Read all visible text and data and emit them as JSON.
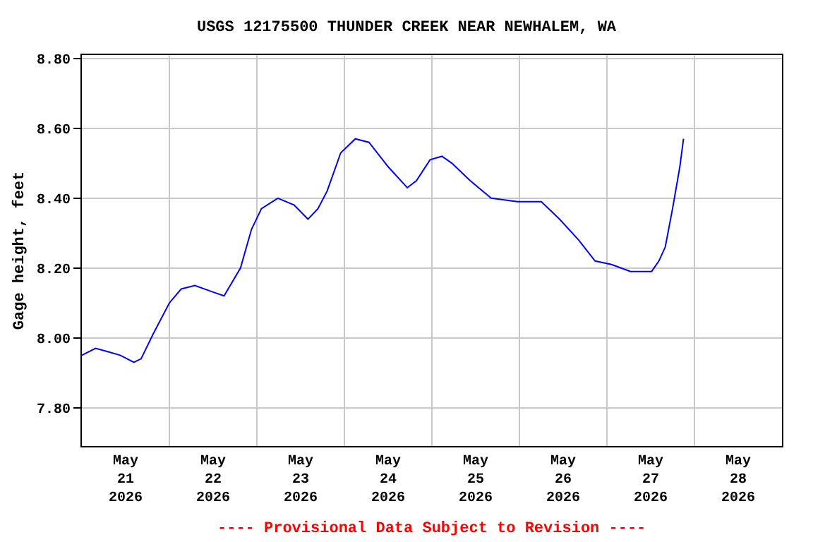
{
  "chart_data": {
    "type": "line",
    "title": "USGS 12175500 THUNDER CREEK NEAR NEWHALEM, WA",
    "ylabel": "Gage height, feet",
    "annotations": [
      "---- Provisional Data Subject to Revision ----"
    ],
    "x": [
      "2026-05-21T00:00",
      "2026-05-21T03:45",
      "2026-05-21T07:15",
      "2026-05-21T10:30",
      "2026-05-21T14:15",
      "2026-05-21T16:15",
      "2026-05-21T19:30",
      "2026-05-22T00:00",
      "2026-05-22T03:15",
      "2026-05-22T07:00",
      "2026-05-22T12:15",
      "2026-05-22T15:00",
      "2026-05-22T19:30",
      "2026-05-22T22:30",
      "2026-05-23T01:15",
      "2026-05-23T05:45",
      "2026-05-23T10:15",
      "2026-05-23T14:00",
      "2026-05-23T16:45",
      "2026-05-23T19:15",
      "2026-05-23T23:00",
      "2026-05-24T03:00",
      "2026-05-24T06:45",
      "2026-05-24T12:00",
      "2026-05-24T17:15",
      "2026-05-24T19:45",
      "2026-05-24T23:30",
      "2026-05-25T02:45",
      "2026-05-25T05:30",
      "2026-05-25T10:30",
      "2026-05-25T16:15",
      "2026-05-25T23:30",
      "2026-05-26T06:00",
      "2026-05-26T11:00",
      "2026-05-26T16:15",
      "2026-05-26T20:45",
      "2026-05-27T01:15",
      "2026-05-27T06:30",
      "2026-05-27T12:15",
      "2026-05-27T14:15",
      "2026-05-27T16:00",
      "2026-05-27T18:00",
      "2026-05-27T20:00",
      "2026-05-27T21:00"
    ],
    "series": [
      {
        "color": "#0000ff",
        "values": [
          7.95,
          7.97,
          7.96,
          7.95,
          7.93,
          7.94,
          8.01,
          8.1,
          8.14,
          8.15,
          8.13,
          8.12,
          8.2,
          8.31,
          8.37,
          8.4,
          8.38,
          8.34,
          8.37,
          8.42,
          8.53,
          8.57,
          8.56,
          8.49,
          8.43,
          8.45,
          8.51,
          8.52,
          8.5,
          8.45,
          8.4,
          8.39,
          8.39,
          8.34,
          8.28,
          8.22,
          8.21,
          8.19,
          8.19,
          8.22,
          8.26,
          8.37,
          8.49,
          8.57
        ]
      }
    ],
    "xlim": [
      "2026-05-21T00:00",
      "2026-05-29T00:00"
    ],
    "xticks": [
      {
        "value": "2026-05-21T12:00",
        "label": "May\n21\n2026"
      },
      {
        "value": "2026-05-22T12:00",
        "label": "May\n22\n2026"
      },
      {
        "value": "2026-05-23T12:00",
        "label": "May\n23\n2026"
      },
      {
        "value": "2026-05-24T12:00",
        "label": "May\n24\n2026"
      },
      {
        "value": "2026-05-25T12:00",
        "label": "May\n25\n2026"
      },
      {
        "value": "2026-05-26T12:00",
        "label": "May\n26\n2026"
      },
      {
        "value": "2026-05-27T12:00",
        "label": "May\n27\n2026"
      },
      {
        "value": "2026-05-28T12:00",
        "label": "May\n28\n2026"
      }
    ],
    "ylim": [
      7.69,
      8.81
    ],
    "yticks": [
      {
        "value": 7.8,
        "label": "7.80"
      },
      {
        "value": 8.0,
        "label": "8.00"
      },
      {
        "value": 8.2,
        "label": "8.20"
      },
      {
        "value": 8.4,
        "label": "8.40"
      },
      {
        "value": 8.6,
        "label": "8.60"
      },
      {
        "value": 8.8,
        "label": "8.80"
      }
    ],
    "grid": true,
    "marker": "none",
    "line_style": "solid"
  }
}
